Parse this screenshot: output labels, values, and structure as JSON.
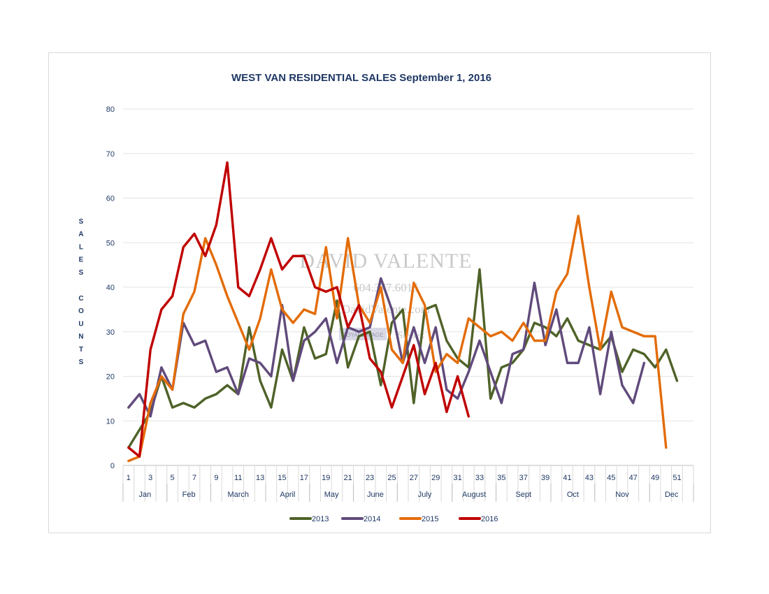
{
  "chart_data": {
    "type": "line",
    "title": "WEST VAN RESIDENTIAL SALES September 1, 2016",
    "ylabel": "SALES COUNTS",
    "xlabel": "",
    "ylim": [
      0,
      80
    ],
    "yticks": [
      0,
      10,
      20,
      30,
      40,
      50,
      60,
      70,
      80
    ],
    "x": [
      1,
      2,
      3,
      4,
      5,
      6,
      7,
      8,
      9,
      10,
      11,
      12,
      13,
      14,
      15,
      16,
      17,
      18,
      19,
      20,
      21,
      22,
      23,
      24,
      25,
      26,
      27,
      28,
      29,
      30,
      31,
      32,
      33,
      34,
      35,
      36,
      37,
      38,
      39,
      40,
      41,
      42,
      43,
      44,
      45,
      46,
      47,
      48,
      49,
      50,
      51,
      52
    ],
    "xtick_labels": [
      "1",
      "3",
      "5",
      "7",
      "9",
      "11",
      "13",
      "15",
      "17",
      "19",
      "21",
      "23",
      "25",
      "27",
      "29",
      "31",
      "33",
      "35",
      "37",
      "39",
      "41",
      "43",
      "45",
      "47",
      "49",
      "51"
    ],
    "months": [
      {
        "label": "Jan",
        "start": 1,
        "end": 4
      },
      {
        "label": "Feb",
        "start": 5,
        "end": 8
      },
      {
        "label": "March",
        "start": 9,
        "end": 13
      },
      {
        "label": "April",
        "start": 14,
        "end": 17
      },
      {
        "label": "May",
        "start": 18,
        "end": 21
      },
      {
        "label": "June",
        "start": 22,
        "end": 25
      },
      {
        "label": "July",
        "start": 26,
        "end": 30
      },
      {
        "label": "August",
        "start": 31,
        "end": 34
      },
      {
        "label": "Sept",
        "start": 35,
        "end": 39
      },
      {
        "label": "Oct",
        "start": 40,
        "end": 43
      },
      {
        "label": "Nov",
        "start": 44,
        "end": 48
      },
      {
        "label": "Dec",
        "start": 49,
        "end": 52
      }
    ],
    "series": [
      {
        "name": "2013",
        "color": "#4f6228",
        "values": [
          4,
          8,
          12,
          20,
          13,
          14,
          13,
          15,
          16,
          18,
          16,
          31,
          19,
          13,
          26,
          19,
          31,
          24,
          25,
          37,
          22,
          29,
          30,
          18,
          32,
          35,
          14,
          35,
          36,
          28,
          24,
          22,
          44,
          15,
          22,
          23,
          26,
          32,
          31,
          29,
          33,
          28,
          27,
          26,
          29,
          21,
          26,
          25,
          22,
          26,
          19,
          null
        ]
      },
      {
        "name": "2014",
        "color": "#604a7b",
        "values": [
          13,
          16,
          11,
          22,
          17,
          32,
          27,
          28,
          21,
          22,
          16,
          24,
          23,
          20,
          36,
          19,
          28,
          30,
          33,
          23,
          31,
          30,
          31,
          42,
          35,
          23,
          31,
          23,
          31,
          17,
          15,
          21,
          28,
          21,
          14,
          25,
          26,
          41,
          27,
          35,
          23,
          23,
          31,
          16,
          30,
          18,
          14,
          23,
          null,
          null,
          null,
          null
        ]
      },
      {
        "name": "2015",
        "color": "#e36c09",
        "values": [
          1,
          2,
          14,
          20,
          17,
          34,
          39,
          51,
          45,
          38,
          32,
          26,
          33,
          44,
          35,
          32,
          35,
          34,
          49,
          33,
          51,
          36,
          32,
          40,
          26,
          23,
          41,
          36,
          21,
          25,
          23,
          33,
          31,
          29,
          30,
          28,
          32,
          28,
          28,
          39,
          43,
          56,
          40,
          26,
          39,
          31,
          30,
          29,
          29,
          4,
          null,
          null
        ]
      },
      {
        "name": "2016",
        "color": "#c00000",
        "values": [
          4,
          2,
          26,
          35,
          38,
          49,
          52,
          47,
          54,
          68,
          40,
          38,
          44,
          51,
          44,
          47,
          47,
          40,
          39,
          40,
          31,
          36,
          24,
          21,
          13,
          20,
          27,
          16,
          23,
          12,
          20,
          11,
          null,
          null,
          null,
          null,
          null,
          null,
          null,
          null,
          null,
          null,
          null,
          null,
          null,
          null,
          null,
          null,
          null,
          null,
          null,
          null
        ]
      }
    ],
    "legend_position": "bottom-center",
    "grid": true
  },
  "watermark": {
    "name": "David Valente",
    "phone": "604.377.6015",
    "site": "DavidValente.com",
    "brokerage_left": "ROYAL LePAGE",
    "brokerage_right": "Sussex"
  }
}
